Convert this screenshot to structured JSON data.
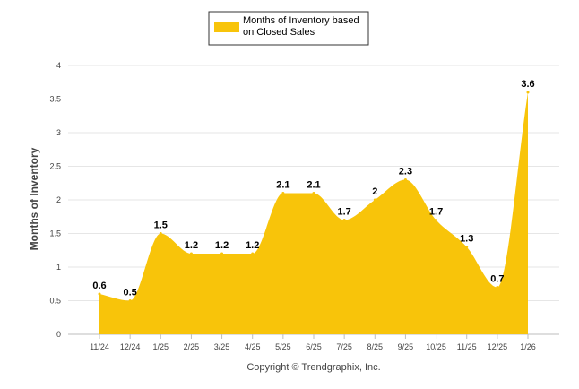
{
  "chart_data": {
    "type": "area",
    "legend": {
      "label_line1": "Months of Inventory based",
      "label_line2": "on Closed Sales",
      "placement": "top-center"
    },
    "ylabel": "Months of Inventory",
    "xlabel": "",
    "credit": "Copyright © Trendgraphix, Inc.",
    "ylim": [
      0,
      4
    ],
    "yticks": [
      "0",
      "0.5",
      "1",
      "1.5",
      "2",
      "2.5",
      "3",
      "3.5",
      "4"
    ],
    "categories": [
      "11/24",
      "12/24",
      "1/25",
      "2/25",
      "3/25",
      "4/25",
      "5/25",
      "6/25",
      "7/25",
      "8/25",
      "9/25",
      "10/25",
      "11/25",
      "12/25",
      "1/26"
    ],
    "series": [
      {
        "name": "Months of Inventory based on Closed Sales",
        "values": [
          0.6,
          0.5,
          1.5,
          1.2,
          1.2,
          1.2,
          2.1,
          2.1,
          1.7,
          2,
          2.3,
          1.7,
          1.3,
          0.7,
          3.6
        ],
        "labels": [
          "0.6",
          "0.5",
          "1.5",
          "1.2",
          "1.2",
          "1.2",
          "2.1",
          "2.1",
          "1.7",
          "2",
          "2.3",
          "1.7",
          "1.3",
          "0.7",
          "3.6"
        ],
        "color": "#F8C40A"
      }
    ],
    "grid": true,
    "gridColor": "#e6e6e6"
  }
}
